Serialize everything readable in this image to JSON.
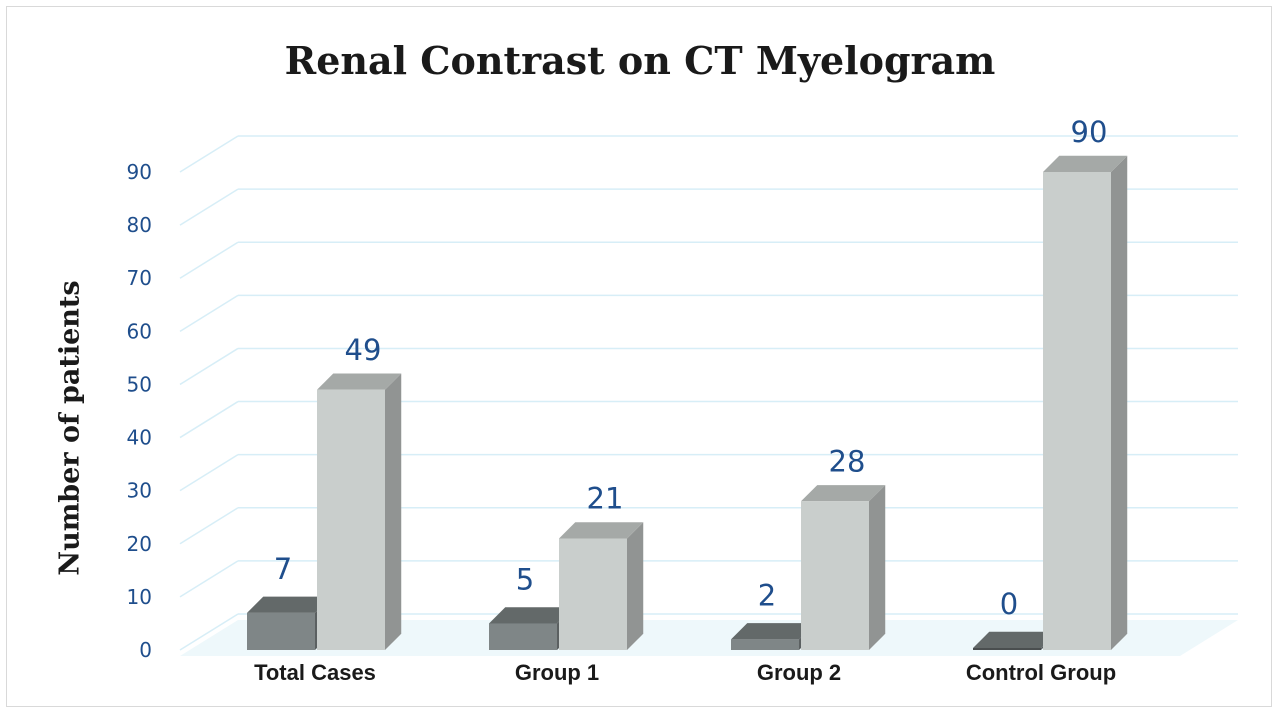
{
  "chart_data": {
    "type": "bar",
    "title": "Renal Contrast on CT Myelogram",
    "ylabel": "Number of patients",
    "xlabel": "",
    "categories": [
      "Total Cases",
      "Group 1",
      "Group 2",
      "Control Group"
    ],
    "series": [
      {
        "values": [
          7,
          5,
          2,
          0
        ],
        "color": "#7f8687"
      },
      {
        "values": [
          49,
          21,
          28,
          90
        ],
        "color": "#c9cecc"
      }
    ],
    "ylim": [
      0,
      90
    ],
    "yticks": [
      0,
      10,
      20,
      30,
      40,
      50,
      60,
      70,
      80,
      90
    ],
    "grid": true,
    "style": "3d-column",
    "colors": {
      "tick_labels": "#1f4e8c",
      "data_labels": "#1f4e8c",
      "gridlines": "#d7eef7"
    }
  }
}
